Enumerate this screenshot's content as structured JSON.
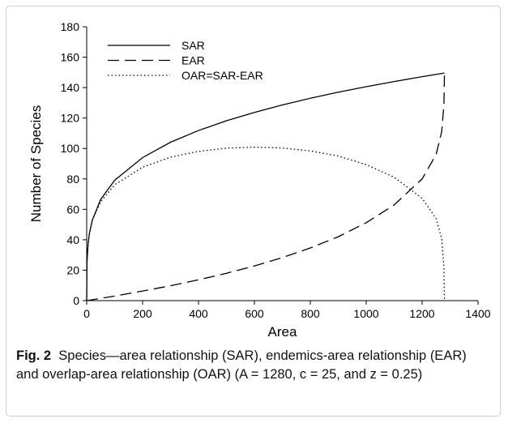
{
  "chart_data": {
    "type": "line",
    "xlabel": "Area",
    "ylabel": "Number of Species",
    "xlim": [
      0,
      1400
    ],
    "ylim": [
      0,
      180
    ],
    "xticks": [
      0,
      200,
      400,
      600,
      800,
      1000,
      1200,
      1400
    ],
    "yticks": [
      0,
      20,
      40,
      60,
      80,
      100,
      120,
      140,
      160,
      180
    ],
    "grid": false,
    "legend_position": "top-left",
    "series": [
      {
        "name": "SAR",
        "style": "solid",
        "x": [
          0,
          1,
          5,
          10,
          20,
          50,
          100,
          200,
          300,
          400,
          500,
          600,
          700,
          800,
          900,
          1000,
          1100,
          1200,
          1280
        ],
        "y": [
          0,
          25,
          37.4,
          44.5,
          52.9,
          66.5,
          79.1,
          94.0,
          104.1,
          111.8,
          118.2,
          123.7,
          128.6,
          133.0,
          137.0,
          140.6,
          144.0,
          147.2,
          149.6
        ]
      },
      {
        "name": "EAR",
        "style": "dashed",
        "x": [
          0,
          50,
          100,
          200,
          300,
          400,
          500,
          600,
          700,
          800,
          900,
          1000,
          1100,
          1200,
          1250,
          1270,
          1278,
          1280
        ],
        "y": [
          0,
          1.5,
          3.0,
          6.3,
          9.8,
          13.7,
          18.0,
          22.8,
          28.3,
          34.6,
          42.0,
          51.2,
          62.9,
          80.0,
          96.0,
          111.0,
          128.5,
          149.6
        ]
      },
      {
        "name": "OAR=SAR-EAR",
        "style": "dotted",
        "x": [
          0,
          1,
          5,
          10,
          20,
          50,
          100,
          200,
          300,
          400,
          500,
          600,
          700,
          800,
          900,
          1000,
          1100,
          1200,
          1250,
          1270,
          1278,
          1280
        ],
        "y": [
          0,
          25,
          37.4,
          44.4,
          52.7,
          65.0,
          76.1,
          87.7,
          94.3,
          98.1,
          100.2,
          100.9,
          100.3,
          98.4,
          95.0,
          89.4,
          81.1,
          67.2,
          53.9,
          40.8,
          22.0,
          0
        ]
      }
    ]
  },
  "caption": {
    "fig_label": "Fig. 2",
    "text": "Species—area relationship (SAR), endemics-area relationship (EAR) and overlap-area relationship (OAR) (A = 1280, c = 25, and z = 0.25)"
  }
}
